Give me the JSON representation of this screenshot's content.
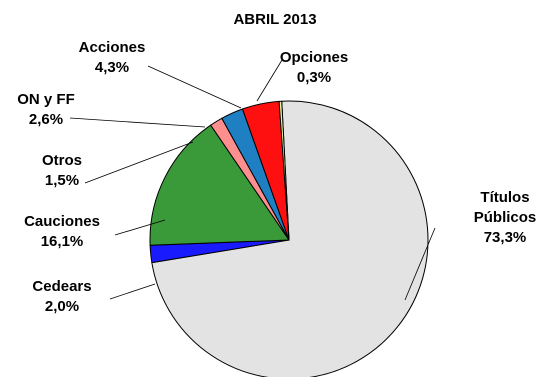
{
  "chart_data": {
    "type": "pie",
    "title": "ABRIL 2013",
    "slices": [
      {
        "name": "Títulos Públicos",
        "label_lines": [
          "Títulos",
          "Públicos"
        ],
        "value_label": "73,3%",
        "value": 73.3,
        "color": "#e3e3e3"
      },
      {
        "name": "Cedears",
        "label_lines": [
          "Cedears"
        ],
        "value_label": "2,0%",
        "value": 2.0,
        "color": "#1a1aff"
      },
      {
        "name": "Cauciones",
        "label_lines": [
          "Cauciones"
        ],
        "value_label": "16,1%",
        "value": 16.1,
        "color": "#3a9a3a"
      },
      {
        "name": "Otros",
        "label_lines": [
          "Otros"
        ],
        "value_label": "1,5%",
        "value": 1.5,
        "color": "#ff8f8f"
      },
      {
        "name": "ON y FF",
        "label_lines": [
          "ON y FF"
        ],
        "value_label": "2,6%",
        "value": 2.6,
        "color": "#1e7fc2"
      },
      {
        "name": "Acciones",
        "label_lines": [
          "Acciones"
        ],
        "value_label": "4,3%",
        "value": 4.3,
        "color": "#ff1010"
      },
      {
        "name": "Opciones",
        "label_lines": [
          "Opciones"
        ],
        "value_label": "0,3%",
        "value": 0.3,
        "color": "#e8f4a0"
      }
    ]
  }
}
